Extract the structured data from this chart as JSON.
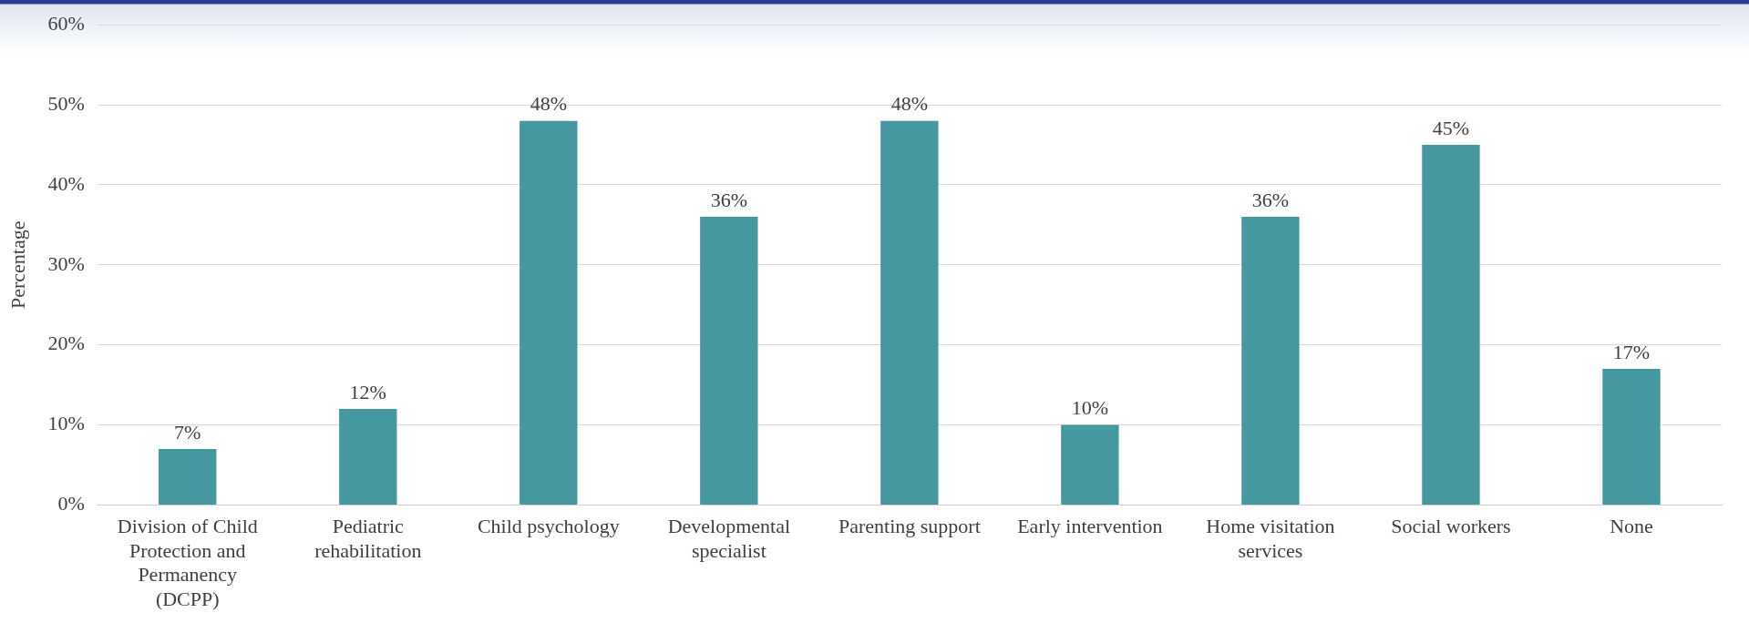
{
  "chart_data": {
    "type": "bar",
    "ylabel": "Percentage",
    "categories": [
      "Division of Child Protection and Permanency (DCPP)",
      "Pediatric rehabilitation",
      "Child psychology",
      "Developmental specialist",
      "Parenting support",
      "Early intervention",
      "Home visitation services",
      "Social workers",
      "None"
    ],
    "values": [
      7,
      12,
      48,
      36,
      48,
      10,
      36,
      45,
      17
    ],
    "value_labels": [
      "7%",
      "12%",
      "48%",
      "36%",
      "48%",
      "10%",
      "36%",
      "45%",
      "17%"
    ],
    "color": "#4597a0",
    "ylim": [
      0,
      60
    ],
    "yticks": [
      {
        "value": 0,
        "label": "0%"
      },
      {
        "value": 10,
        "label": "10%"
      },
      {
        "value": 20,
        "label": "20%"
      },
      {
        "value": 30,
        "label": "30%"
      },
      {
        "value": 40,
        "label": "40%"
      },
      {
        "value": 50,
        "label": "50%"
      },
      {
        "value": 60,
        "label": "60%"
      }
    ],
    "grid": "y",
    "legend": false
  }
}
